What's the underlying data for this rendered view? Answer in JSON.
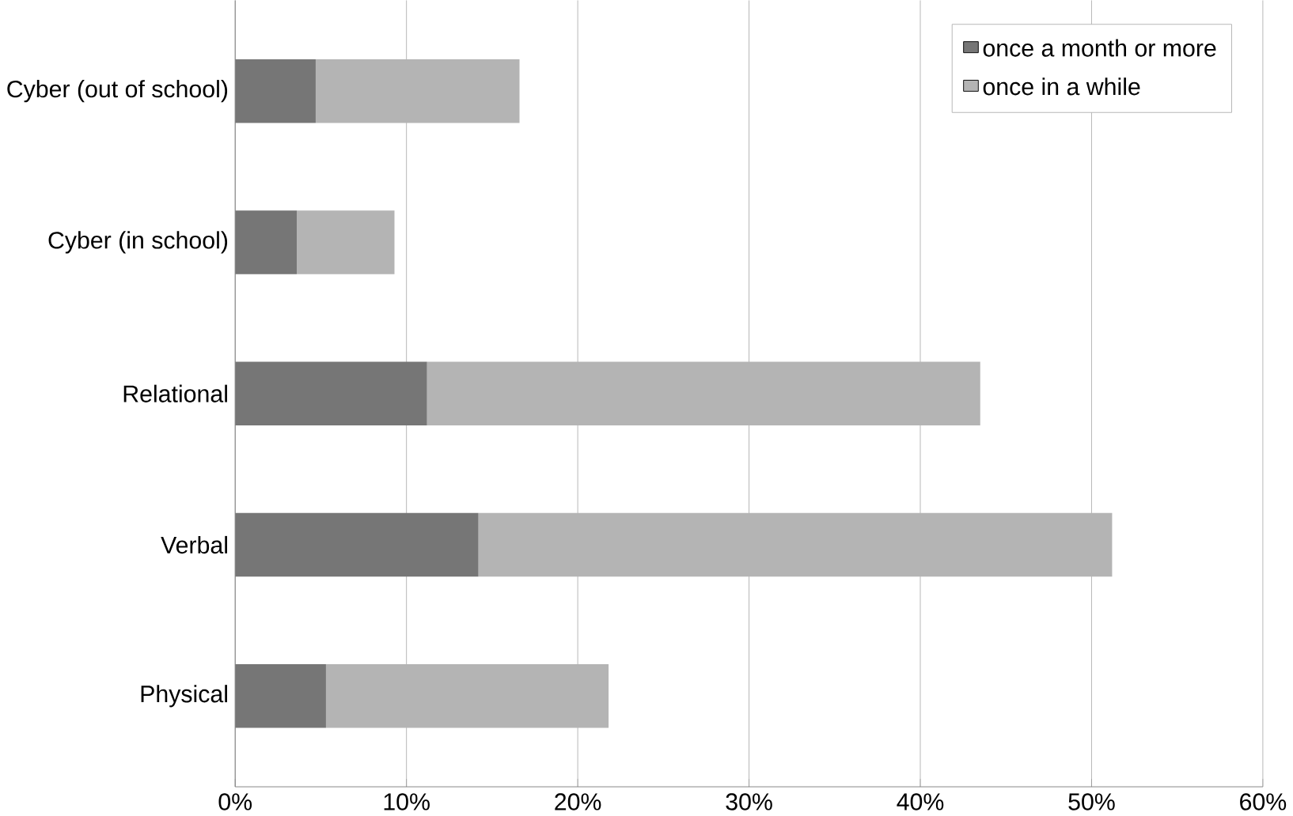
{
  "chart_data": {
    "type": "bar",
    "orientation": "horizontal",
    "stacked": true,
    "categories": [
      "Cyber (out of school)",
      "Cyber (in school)",
      "Relational",
      "Verbal",
      "Physical"
    ],
    "series": [
      {
        "name": "once a month or more",
        "color": "#767676",
        "values": [
          4.7,
          3.6,
          11.2,
          14.2,
          5.3
        ]
      },
      {
        "name": "once in a while",
        "color": "#b4b4b4",
        "values": [
          11.9,
          5.7,
          32.3,
          37.0,
          16.5
        ]
      }
    ],
    "xlim": [
      0,
      60
    ],
    "xticks": [
      {
        "value": 0,
        "label": "0%"
      },
      {
        "value": 10,
        "label": "10%"
      },
      {
        "value": 20,
        "label": "20%"
      },
      {
        "value": 30,
        "label": "30%"
      },
      {
        "value": 40,
        "label": "40%"
      },
      {
        "value": 50,
        "label": "50%"
      },
      {
        "value": 60,
        "label": "60%"
      }
    ],
    "grid": "x",
    "legend": "top right"
  }
}
